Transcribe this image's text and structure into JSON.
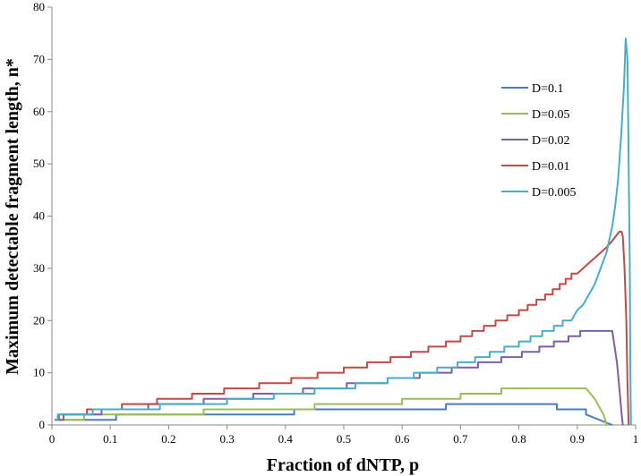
{
  "chart_data": {
    "type": "line",
    "title": "",
    "xlabel": "Fraction of dNTP, p",
    "ylabel": "Maximum detectable fragment length, n*",
    "xlim": [
      0,
      1
    ],
    "ylim": [
      0,
      80
    ],
    "xticks": [
      "0",
      "0.1",
      "0.2",
      "0.3",
      "0.4",
      "0.5",
      "0.6",
      "0.7",
      "0.8",
      "0.9",
      "1"
    ],
    "yticks": [
      "0",
      "10",
      "20",
      "30",
      "40",
      "50",
      "60",
      "70",
      "80"
    ],
    "grid": false,
    "legend_position": "right",
    "series": [
      {
        "name": "D=0.1",
        "color": "#4a7ebb",
        "x": [
          0.005,
          0.11,
          0.11,
          0.415,
          0.415,
          0.675,
          0.675,
          0.865,
          0.865,
          0.915,
          0.915,
          0.96
        ],
        "y": [
          1,
          1,
          2,
          2,
          3,
          3,
          4,
          4,
          3,
          3,
          2,
          0
        ]
      },
      {
        "name": "D=0.05",
        "color": "#9bbb59",
        "x": [
          0.005,
          0.055,
          0.055,
          0.26,
          0.26,
          0.45,
          0.45,
          0.6,
          0.6,
          0.7,
          0.7,
          0.77,
          0.77,
          0.915,
          0.93,
          0.94,
          0.945,
          0.948,
          0.95
        ],
        "y": [
          1,
          1,
          2,
          2,
          3,
          3,
          4,
          4,
          5,
          5,
          6,
          6,
          7,
          7,
          5,
          3,
          2,
          1,
          0
        ]
      },
      {
        "name": "D=0.02",
        "color": "#7d60a0",
        "x": [
          0.005,
          0.02,
          0.02,
          0.085,
          0.085,
          0.165,
          0.165,
          0.26,
          0.26,
          0.345,
          0.345,
          0.43,
          0.43,
          0.505,
          0.505,
          0.575,
          0.575,
          0.63,
          0.63,
          0.685,
          0.685,
          0.73,
          0.73,
          0.77,
          0.77,
          0.805,
          0.805,
          0.835,
          0.835,
          0.86,
          0.86,
          0.885,
          0.885,
          0.905,
          0.905,
          0.925,
          0.925,
          0.94,
          0.94,
          0.96,
          0.968,
          0.973,
          0.976,
          0.978
        ],
        "y": [
          1,
          1,
          2,
          2,
          3,
          3,
          4,
          4,
          5,
          5,
          6,
          6,
          7,
          7,
          8,
          8,
          9,
          9,
          10,
          10,
          11,
          11,
          12,
          12,
          13,
          13,
          14,
          14,
          15,
          15,
          16,
          16,
          17,
          17,
          18,
          18,
          18,
          18,
          18,
          18,
          12,
          6,
          2,
          0
        ]
      },
      {
        "name": "D=0.01",
        "color": "#be4b48",
        "x": [
          0.005,
          0.012,
          0.012,
          0.06,
          0.06,
          0.12,
          0.12,
          0.18,
          0.18,
          0.24,
          0.24,
          0.295,
          0.295,
          0.355,
          0.355,
          0.41,
          0.41,
          0.455,
          0.455,
          0.5,
          0.5,
          0.54,
          0.54,
          0.58,
          0.58,
          0.615,
          0.615,
          0.645,
          0.645,
          0.675,
          0.675,
          0.7,
          0.7,
          0.72,
          0.72,
          0.74,
          0.74,
          0.76,
          0.76,
          0.78,
          0.78,
          0.8,
          0.8,
          0.815,
          0.815,
          0.83,
          0.83,
          0.845,
          0.845,
          0.858,
          0.858,
          0.87,
          0.87,
          0.88,
          0.88,
          0.89,
          0.89,
          0.9,
          0.91,
          0.92,
          0.93,
          0.94,
          0.95,
          0.958,
          0.965,
          0.972,
          0.976,
          0.978,
          0.981,
          0.984,
          0.986,
          0.988
        ],
        "y": [
          1,
          1,
          2,
          2,
          3,
          3,
          4,
          4,
          5,
          5,
          6,
          6,
          7,
          7,
          8,
          8,
          9,
          9,
          10,
          10,
          11,
          11,
          12,
          12,
          13,
          13,
          14,
          14,
          15,
          15,
          16,
          16,
          17,
          17,
          18,
          18,
          19,
          19,
          20,
          20,
          21,
          21,
          22,
          22,
          23,
          23,
          24,
          24,
          25,
          25,
          26,
          26,
          27,
          27,
          28,
          28,
          29,
          29,
          30,
          31,
          32,
          33,
          34,
          35,
          36,
          37,
          37,
          36,
          30,
          20,
          8,
          0
        ]
      },
      {
        "name": "D=0.005",
        "color": "#4bacc6",
        "x": [
          0.005,
          0.01,
          0.01,
          0.07,
          0.07,
          0.185,
          0.185,
          0.3,
          0.3,
          0.38,
          0.38,
          0.45,
          0.45,
          0.52,
          0.52,
          0.575,
          0.575,
          0.62,
          0.62,
          0.66,
          0.66,
          0.695,
          0.695,
          0.725,
          0.725,
          0.75,
          0.75,
          0.775,
          0.775,
          0.8,
          0.8,
          0.82,
          0.82,
          0.84,
          0.84,
          0.86,
          0.86,
          0.875,
          0.875,
          0.89,
          0.9,
          0.91,
          0.92,
          0.93,
          0.94,
          0.95,
          0.96,
          0.965,
          0.97,
          0.975,
          0.98,
          0.983,
          0.986,
          0.988,
          0.99,
          0.991,
          0.992
        ],
        "y": [
          1,
          1,
          2,
          2,
          3,
          3,
          4,
          4,
          5,
          5,
          6,
          6,
          7,
          7,
          8,
          8,
          9,
          9,
          10,
          10,
          11,
          11,
          12,
          12,
          13,
          13,
          14,
          14,
          15,
          15,
          16,
          16,
          17,
          17,
          18,
          18,
          19,
          19,
          20,
          20,
          22,
          23,
          25,
          27,
          30,
          33,
          38,
          42,
          47,
          55,
          65,
          74,
          70,
          50,
          30,
          10,
          0
        ]
      }
    ]
  }
}
